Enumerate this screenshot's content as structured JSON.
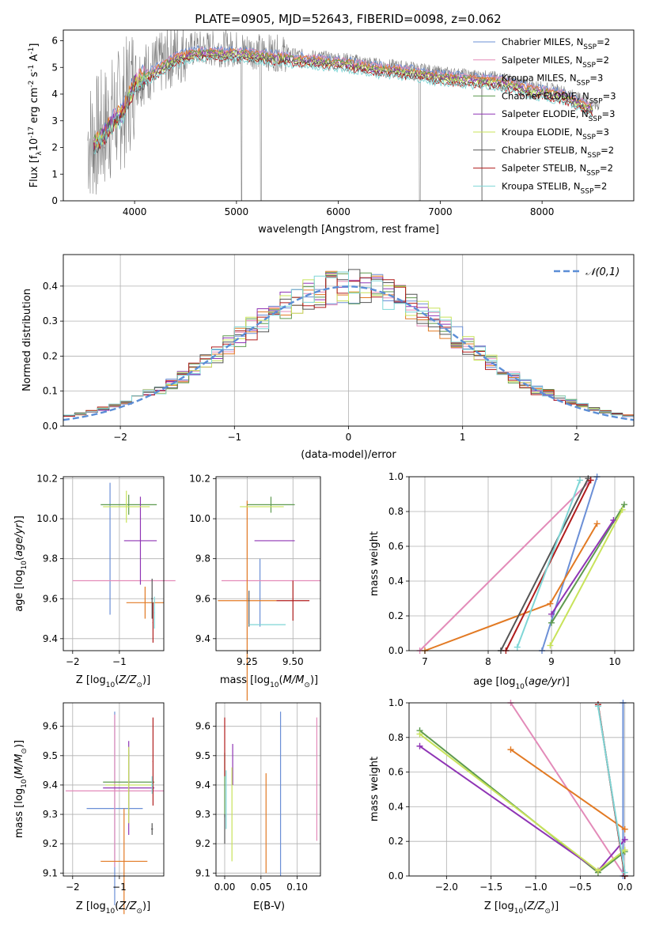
{
  "figure": {
    "title": "PLATE=0905, MJD=52643, FIBERID=0098, z=0.062"
  },
  "models": [
    {
      "name": "Chabrier MILES, N",
      "sub": "SSP",
      "suffix": "=2",
      "color": "#6b8fd6"
    },
    {
      "name": "Salpeter MILES, N",
      "sub": "SSP",
      "suffix": "=2",
      "color": "#e38bb9"
    },
    {
      "name": "Kroupa MILES, N",
      "sub": "SSP",
      "suffix": "=3",
      "color": "#e27a24"
    },
    {
      "name": "Chabrier ELODIE, N",
      "sub": "SSP",
      "suffix": "=3",
      "color": "#5e9a4f"
    },
    {
      "name": "Salpeter ELODIE, N",
      "sub": "SSP",
      "suffix": "=3",
      "color": "#8f35b5"
    },
    {
      "name": "Kroupa ELODIE, N",
      "sub": "SSP",
      "suffix": "=3",
      "color": "#c8e35a"
    },
    {
      "name": "Chabrier STELIB, N",
      "sub": "SSP",
      "suffix": "=2",
      "color": "#555555"
    },
    {
      "name": "Salpeter STELIB, N",
      "sub": "SSP",
      "suffix": "=2",
      "color": "#b01c1c"
    },
    {
      "name": "Kroupa STELIB, N",
      "sub": "SSP",
      "suffix": "=2",
      "color": "#7fd6d6"
    }
  ],
  "chart_data": [
    {
      "id": "spectrum",
      "type": "line",
      "xlabel": "wavelength [Angstrom, rest frame]",
      "ylabel_parts": [
        "Flux [f",
        "λ",
        "10",
        "-17",
        " erg cm",
        "-2",
        " s",
        "-1",
        " A",
        "-1",
        "]"
      ],
      "xlim": [
        3300,
        8900
      ],
      "ylim": [
        0,
        6.4
      ],
      "xticks": [
        4000,
        5000,
        6000,
        7000,
        8000
      ],
      "yticks": [
        0,
        1,
        2,
        3,
        4,
        5,
        6
      ],
      "observed_color": "#808080",
      "model_continuum_x": [
        3600,
        3700,
        3800,
        3900,
        4000,
        4200,
        4400,
        4600,
        4800,
        5000,
        5200,
        5500,
        5800,
        6100,
        6400,
        6700,
        7000,
        7300,
        7600,
        7900,
        8200,
        8500
      ],
      "model_continuum_y": [
        2.3,
        2.7,
        3.2,
        3.6,
        4.6,
        5.0,
        5.5,
        5.7,
        5.7,
        5.7,
        5.6,
        5.5,
        5.4,
        5.3,
        5.1,
        5.0,
        4.8,
        4.7,
        4.6,
        4.3,
        4.1,
        3.6
      ]
    },
    {
      "id": "residuals",
      "type": "histogram",
      "xlabel": "(data-model)/error",
      "ylabel": "Normed distribution",
      "xlim": [
        -2.5,
        2.5
      ],
      "ylim": [
        0,
        0.49
      ],
      "xticks": [
        -2,
        -1,
        0,
        1,
        2
      ],
      "yticks": [
        0.0,
        0.1,
        0.2,
        0.3,
        0.4
      ],
      "grid": true,
      "reference_label": "𝒩(0,1)",
      "reference_color": "#5b8ed6",
      "legend": "top-right"
    },
    {
      "id": "age-vs-Z",
      "type": "errorbar",
      "xlabel_parts": [
        "Z [log",
        "10",
        "(",
        "Z/Z",
        "⊙",
        ")]"
      ],
      "ylabel_parts": [
        "age  [log",
        "10",
        "(",
        "age/yr",
        ")]"
      ],
      "xlim": [
        -2.2,
        -0.05
      ],
      "ylim": [
        9.34,
        10.21
      ],
      "xticks": [
        -2,
        -1
      ],
      "yticks": [
        9.4,
        9.6,
        9.8,
        10.0,
        10.2
      ],
      "grid": true,
      "points": [
        {
          "x": -1.2,
          "xerr": 0.0,
          "y": 9.85,
          "yerr": 0.33
        },
        {
          "x": -0.9,
          "xerr": 1.1,
          "y": 9.69,
          "yerr": 0.0
        },
        {
          "x": -0.45,
          "xerr": 0.4,
          "y": 9.58,
          "yerr": 0.08
        },
        {
          "x": -0.8,
          "xerr": 0.6,
          "y": 10.07,
          "yerr": 0.05
        },
        {
          "x": -0.55,
          "xerr": 0.35,
          "y": 9.89,
          "yerr": 0.22
        },
        {
          "x": -0.85,
          "xerr": 0.5,
          "y": 10.06,
          "yerr": 0.08
        },
        {
          "x": -0.3,
          "xerr": 0.02,
          "y": 9.6,
          "yerr": 0.1
        },
        {
          "x": -0.28,
          "xerr": 0.01,
          "y": 9.48,
          "yerr": 0.1
        },
        {
          "x": -0.25,
          "xerr": 0.01,
          "y": 9.53,
          "yerr": 0.08
        }
      ]
    },
    {
      "id": "age-vs-mass",
      "type": "errorbar",
      "xlabel_parts": [
        "mass [log",
        "10",
        "(",
        "M/M",
        "⊙",
        ")]"
      ],
      "xlim": [
        9.08,
        9.65
      ],
      "ylim": [
        9.34,
        10.21
      ],
      "xticks": [
        9.25,
        9.5
      ],
      "yticks": [
        9.4,
        9.6,
        9.8,
        10.0,
        10.2
      ],
      "grid": true,
      "points": [
        {
          "x": 9.32,
          "xerr": 0.0,
          "y": 9.63,
          "yerr": 0.17
        },
        {
          "x": 9.38,
          "xerr": 0.27,
          "y": 9.69,
          "yerr": 0.0
        },
        {
          "x": 9.25,
          "xerr": 0.16,
          "y": 9.59,
          "yerr": 0.5
        },
        {
          "x": 9.38,
          "xerr": 0.13,
          "y": 10.07,
          "yerr": 0.04
        },
        {
          "x": 9.4,
          "xerr": 0.11,
          "y": 9.89,
          "yerr": 0.0
        },
        {
          "x": 9.33,
          "xerr": 0.12,
          "y": 10.06,
          "yerr": 0.0
        },
        {
          "x": 9.26,
          "xerr": 0.0,
          "y": 9.55,
          "yerr": 0.09
        },
        {
          "x": 9.5,
          "xerr": 0.09,
          "y": 9.59,
          "yerr": 0.1
        },
        {
          "x": 9.36,
          "xerr": 0.1,
          "y": 9.47,
          "yerr": 0.0
        }
      ]
    },
    {
      "id": "massweight-vs-age",
      "type": "line",
      "xlabel_parts": [
        "age  [log",
        "10",
        "(",
        "age/yr",
        ")]"
      ],
      "ylabel": "mass weight",
      "xlim": [
        6.75,
        10.3
      ],
      "ylim": [
        0,
        1.0
      ],
      "xticks": [
        7,
        8,
        9,
        10
      ],
      "yticks": [
        0.0,
        0.2,
        0.4,
        0.6,
        0.8,
        1.0
      ],
      "grid": true,
      "series": [
        {
          "x": [
            8.85,
            9.72
          ],
          "y": [
            0.0,
            1.0
          ]
        },
        {
          "x": [
            6.92,
            9.62
          ],
          "y": [
            0.0,
            0.98
          ]
        },
        {
          "x": [
            7.0,
            8.98,
            9.72
          ],
          "y": [
            0.0,
            0.27,
            0.73
          ]
        },
        {
          "x": [
            9.0,
            10.15
          ],
          "y": [
            0.16,
            0.84
          ]
        },
        {
          "x": [
            9.0,
            9.98
          ],
          "y": [
            0.21,
            0.75
          ]
        },
        {
          "x": [
            8.98,
            10.12
          ],
          "y": [
            0.03,
            0.81
          ]
        },
        {
          "x": [
            8.2,
            9.58
          ],
          "y": [
            0.0,
            0.99
          ]
        },
        {
          "x": [
            8.28,
            9.62
          ],
          "y": [
            0.0,
            0.98
          ]
        },
        {
          "x": [
            8.46,
            9.45
          ],
          "y": [
            0.02,
            0.98
          ]
        }
      ]
    },
    {
      "id": "mass-vs-Z",
      "type": "errorbar",
      "xlabel_parts": [
        "Z [log",
        "10",
        "(",
        "Z/Z",
        "⊙",
        ")]"
      ],
      "ylabel_parts": [
        "mass [log",
        "10",
        "(",
        "M/M",
        "⊙",
        ")]"
      ],
      "xlim": [
        -2.2,
        -0.05
      ],
      "ylim": [
        9.09,
        9.68
      ],
      "xticks": [
        -2,
        -1
      ],
      "yticks": [
        9.1,
        9.2,
        9.3,
        9.4,
        9.5,
        9.6
      ],
      "grid": true,
      "points": [
        {
          "x": -1.1,
          "xerr": 0.6,
          "y": 9.32,
          "yerr": 0.33
        },
        {
          "x": -1.1,
          "xerr": 1.05,
          "y": 9.38,
          "yerr": 0.26
        },
        {
          "x": -0.9,
          "xerr": 0.5,
          "y": 9.14,
          "yerr": 0.18
        },
        {
          "x": -0.8,
          "xerr": 0.55,
          "y": 9.41,
          "yerr": 0.11
        },
        {
          "x": -0.8,
          "xerr": 0.55,
          "y": 9.39,
          "yerr": 0.16
        },
        {
          "x": -0.8,
          "xerr": 0.5,
          "y": 9.4,
          "yerr": 0.13
        },
        {
          "x": -0.3,
          "xerr": 0.02,
          "y": 9.25,
          "yerr": 0.02
        },
        {
          "x": -0.28,
          "xerr": 0.01,
          "y": 9.48,
          "yerr": 0.15
        },
        {
          "x": -0.3,
          "xerr": 0.02,
          "y": 9.4,
          "yerr": 0.03
        }
      ]
    },
    {
      "id": "mass-vs-EBV",
      "type": "errorbar",
      "xlabel": "E(B-V)",
      "xlim": [
        -0.012,
        0.132
      ],
      "ylim": [
        9.09,
        9.68
      ],
      "xticks": [
        0.0,
        0.05,
        0.1
      ],
      "yticks": [
        9.1,
        9.2,
        9.3,
        9.4,
        9.5,
        9.6
      ],
      "grid": true,
      "points": [
        {
          "x": 0.077,
          "xerr": 0.0,
          "y": 9.37,
          "yerr": 0.28
        },
        {
          "x": 0.127,
          "xerr": 0.0,
          "y": 9.42,
          "yerr": 0.21
        },
        {
          "x": 0.057,
          "xerr": 0.0,
          "y": 9.27,
          "yerr": 0.17
        },
        {
          "x": 0.0,
          "xerr": 0.0,
          "y": 9.4,
          "yerr": 0.11
        },
        {
          "x": 0.011,
          "xerr": 0.0,
          "y": 9.47,
          "yerr": 0.07
        },
        {
          "x": 0.01,
          "xerr": 0.0,
          "y": 9.3,
          "yerr": 0.16
        },
        {
          "x": 0.0,
          "xerr": 0.0,
          "y": 9.25,
          "yerr": 0.05
        },
        {
          "x": 0.0,
          "xerr": 0.0,
          "y": 9.53,
          "yerr": 0.1
        },
        {
          "x": 0.002,
          "xerr": 0.0,
          "y": 9.35,
          "yerr": 0.1
        }
      ]
    },
    {
      "id": "massweight-vs-Z",
      "type": "line",
      "xlabel_parts": [
        "Z [log",
        "10",
        "(",
        "Z/Z",
        "⊙",
        ")]"
      ],
      "ylabel": "mass weight",
      "xlim": [
        -2.42,
        0.1
      ],
      "ylim": [
        0,
        1.0
      ],
      "xticks": [
        -2.0,
        -1.5,
        -1.0,
        -0.5,
        0.0
      ],
      "grid": true,
      "series": [
        {
          "x": [
            -0.02,
            -0.02
          ],
          "y": [
            0.0,
            1.0
          ]
        },
        {
          "x": [
            -1.28,
            0.0
          ],
          "y": [
            1.0,
            0.0
          ]
        },
        {
          "x": [
            -1.28,
            0.0
          ],
          "y": [
            0.73,
            0.27
          ]
        },
        {
          "x": [
            -2.3,
            -0.3,
            0.0
          ],
          "y": [
            0.84,
            0.02,
            0.14
          ]
        },
        {
          "x": [
            -2.3,
            -0.3,
            0.0
          ],
          "y": [
            0.75,
            0.03,
            0.21
          ]
        },
        {
          "x": [
            -2.3,
            -0.3,
            0.0
          ],
          "y": [
            0.82,
            0.03,
            0.15
          ]
        },
        {
          "x": [
            -0.3,
            0.0
          ],
          "y": [
            0.99,
            0.0
          ]
        },
        {
          "x": [
            -0.3,
            0.0
          ],
          "y": [
            0.99,
            0.0
          ]
        },
        {
          "x": [
            -0.3,
            0.0
          ],
          "y": [
            0.98,
            0.02
          ]
        }
      ]
    }
  ]
}
